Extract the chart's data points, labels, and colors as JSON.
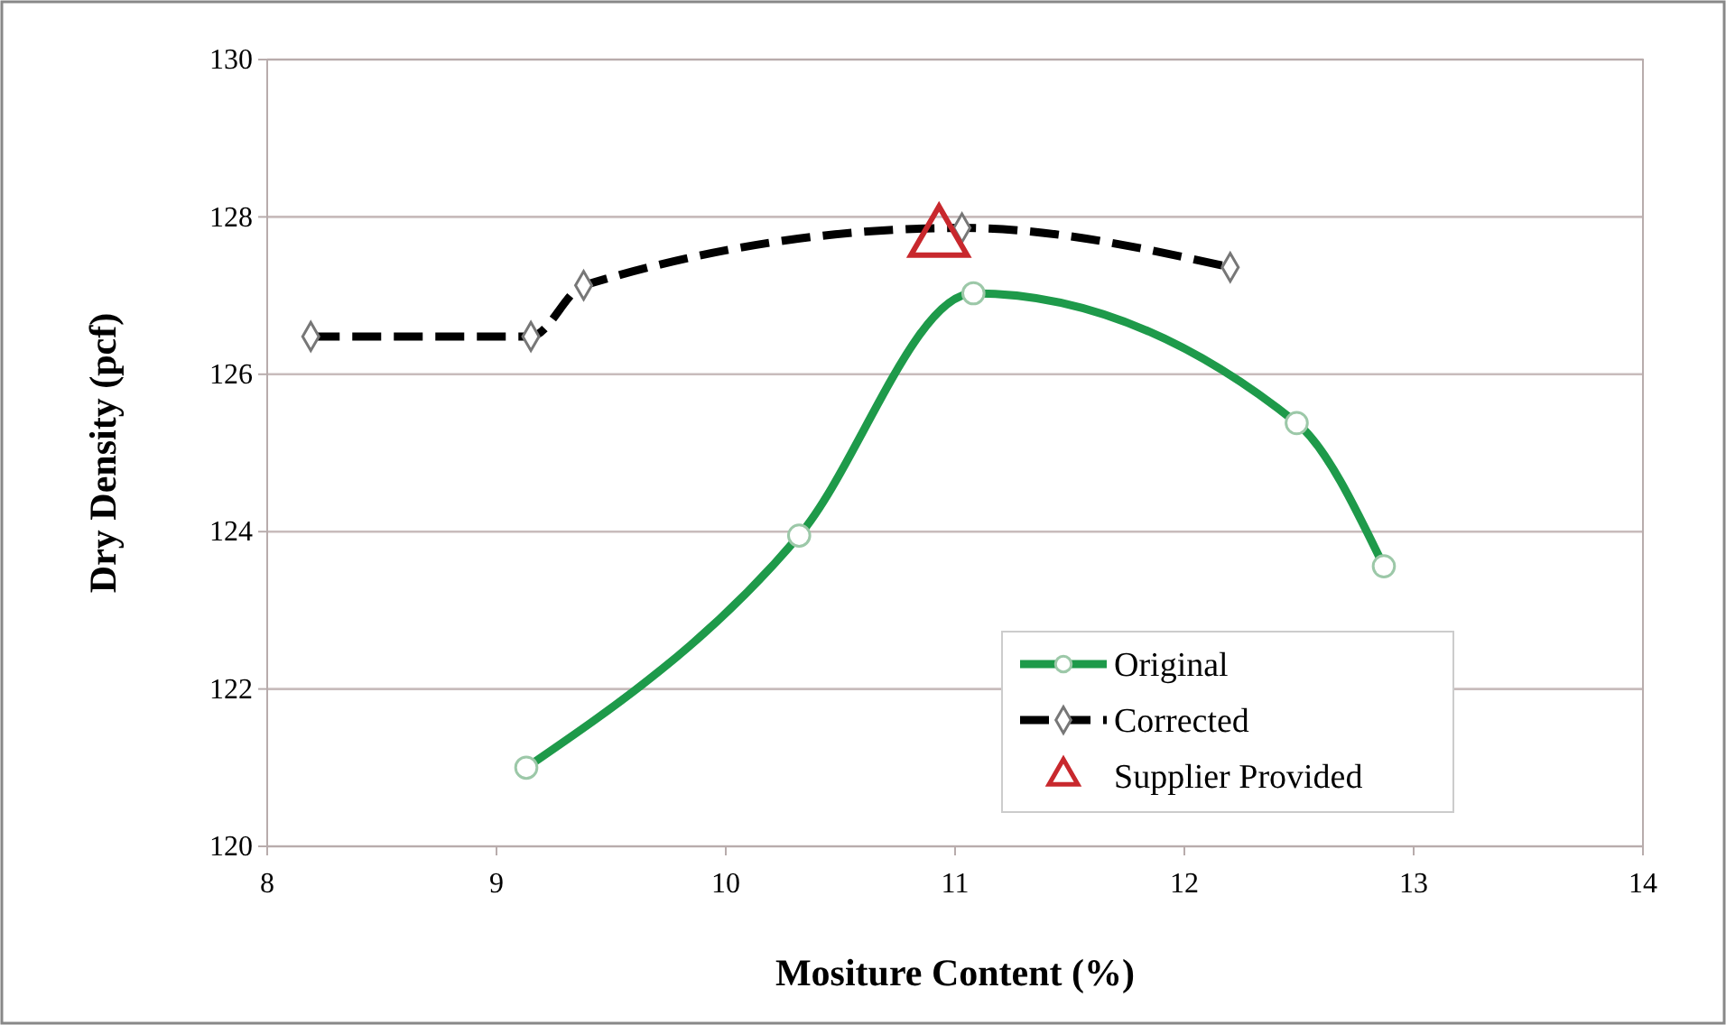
{
  "chart_data": {
    "type": "line",
    "xlabel": "Mositure Content (%)",
    "ylabel": "Dry Density (pcf)",
    "xlim": [
      8,
      14
    ],
    "xticks": [
      8,
      9,
      10,
      11,
      12,
      13,
      14
    ],
    "ylim": [
      120,
      130
    ],
    "yticks": [
      120,
      122,
      124,
      126,
      128,
      130
    ],
    "grid": "y",
    "legend": "bottom right",
    "series": [
      {
        "name": "Original",
        "color": "#1e9a4a",
        "marker": "circle",
        "line_style": "solid",
        "x": [
          9.13,
          10.32,
          11.08,
          12.49,
          12.87
        ],
        "values": [
          121.0,
          123.95,
          127.03,
          125.38,
          123.56
        ]
      },
      {
        "name": "Corrected",
        "color": "#000000",
        "marker": "diamond",
        "line_style": "dashed",
        "x": [
          8.19,
          9.15,
          9.38,
          11.03,
          12.2
        ],
        "values": [
          126.48,
          126.48,
          127.13,
          127.86,
          127.36
        ]
      },
      {
        "name": "Supplier Provided",
        "type": "scatter",
        "color": "#c8282d",
        "marker": "triangle",
        "x": [
          10.93
        ],
        "values": [
          127.72
        ]
      }
    ]
  }
}
